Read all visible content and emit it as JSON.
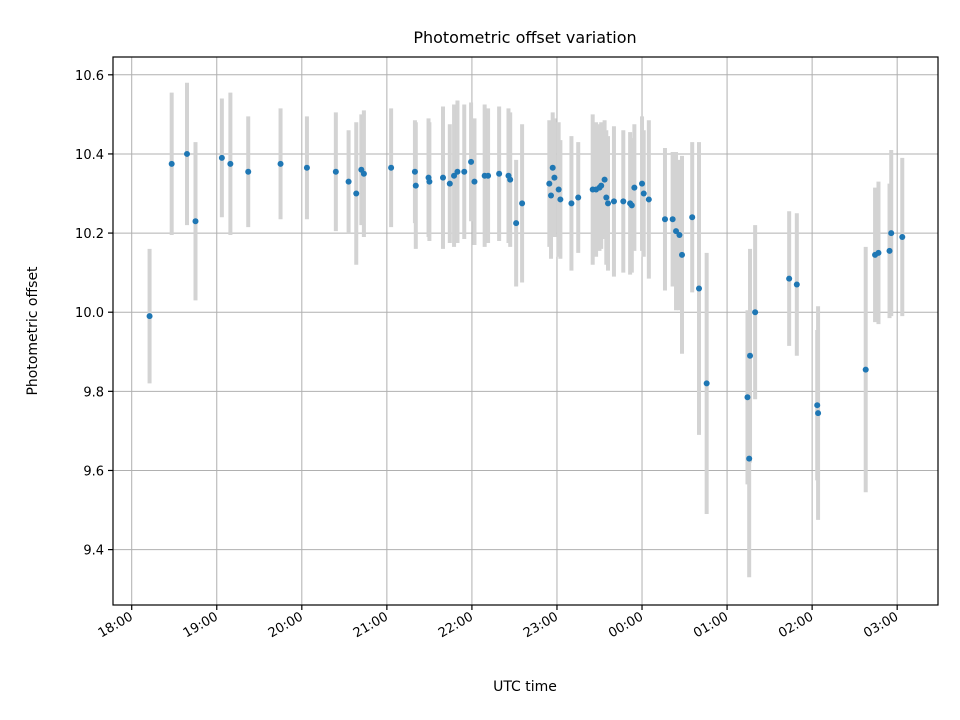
{
  "chart_data": {
    "type": "scatter",
    "title": "Photometric offset variation",
    "xlabel": "UTC time",
    "ylabel": "Photometric offset",
    "x_tick_labels": [
      "18:00",
      "19:00",
      "20:00",
      "21:00",
      "22:00",
      "23:00",
      "00:00",
      "01:00",
      "02:00",
      "03:00"
    ],
    "x_tick_hours": [
      18,
      19,
      20,
      21,
      22,
      23,
      24,
      25,
      26,
      27
    ],
    "y_tick_labels": [
      "9.4",
      "9.6",
      "9.8",
      "10.0",
      "10.2",
      "10.4",
      "10.6"
    ],
    "y_tick_values": [
      9.4,
      9.6,
      9.8,
      10.0,
      10.2,
      10.4,
      10.6
    ],
    "xlim_hours": [
      17.78,
      27.48
    ],
    "ylim": [
      9.26,
      10.645
    ],
    "grid": true,
    "colors": {
      "point": "#1f77b4",
      "errorbar": "#d3d3d3",
      "grid": "#b0b0b0"
    },
    "series": [
      {
        "x_hours": [
          18.21,
          18.47,
          18.65,
          18.75,
          19.06,
          19.16,
          19.37,
          19.75,
          20.06,
          20.4,
          20.55,
          20.64,
          20.7,
          20.73,
          21.05,
          21.33,
          21.34,
          21.49,
          21.5,
          21.66,
          21.74,
          21.79,
          21.83,
          21.91,
          21.99,
          22.03,
          22.15,
          22.19,
          22.32,
          22.43,
          22.45,
          22.52,
          22.59,
          22.91,
          22.93,
          22.95,
          22.97,
          23.02,
          23.04,
          23.17,
          23.25,
          23.42,
          23.46,
          23.5,
          23.52,
          23.56,
          23.58,
          23.6,
          23.67,
          23.78,
          23.86,
          23.88,
          23.91,
          24.0,
          24.02,
          24.08,
          24.27,
          24.36,
          24.4,
          24.44,
          24.47,
          24.59,
          24.67,
          24.76,
          25.24,
          25.26,
          25.27,
          25.33,
          25.73,
          25.82,
          26.06,
          26.07,
          26.63,
          26.74,
          26.78,
          26.91,
          26.93,
          27.06
        ],
        "y": [
          9.99,
          10.375,
          10.4,
          10.23,
          10.39,
          10.375,
          10.355,
          10.375,
          10.365,
          10.355,
          10.33,
          10.3,
          10.36,
          10.35,
          10.365,
          10.355,
          10.32,
          10.34,
          10.33,
          10.34,
          10.325,
          10.345,
          10.355,
          10.355,
          10.38,
          10.33,
          10.345,
          10.345,
          10.35,
          10.345,
          10.335,
          10.225,
          10.275,
          10.325,
          10.295,
          10.365,
          10.34,
          10.31,
          10.285,
          10.275,
          10.29,
          10.31,
          10.31,
          10.315,
          10.32,
          10.335,
          10.29,
          10.275,
          10.28,
          10.28,
          10.275,
          10.27,
          10.315,
          10.325,
          10.3,
          10.285,
          10.235,
          10.235,
          10.205,
          10.195,
          10.145,
          10.24,
          10.06,
          9.82,
          9.785,
          9.63,
          9.89,
          10.0,
          10.085,
          10.07,
          9.765,
          9.745,
          9.855,
          10.145,
          10.15,
          10.155,
          10.2,
          10.19
        ],
        "y_err": [
          0.17,
          0.18,
          0.18,
          0.2,
          0.15,
          0.18,
          0.14,
          0.14,
          0.13,
          0.15,
          0.13,
          0.18,
          0.14,
          0.16,
          0.15,
          0.13,
          0.16,
          0.15,
          0.15,
          0.18,
          0.15,
          0.18,
          0.18,
          0.17,
          0.15,
          0.16,
          0.18,
          0.17,
          0.17,
          0.17,
          0.17,
          0.16,
          0.2,
          0.16,
          0.16,
          0.14,
          0.15,
          0.17,
          0.15,
          0.17,
          0.14,
          0.19,
          0.17,
          0.16,
          0.16,
          0.15,
          0.17,
          0.17,
          0.19,
          0.18,
          0.18,
          0.17,
          0.16,
          0.17,
          0.16,
          0.2,
          0.18,
          0.17,
          0.2,
          0.19,
          0.25,
          0.19,
          0.37,
          0.33,
          0.22,
          0.3,
          0.27,
          0.22,
          0.17,
          0.18,
          0.19,
          0.27,
          0.31,
          0.17,
          0.18,
          0.17,
          0.21,
          0.2
        ]
      }
    ]
  }
}
